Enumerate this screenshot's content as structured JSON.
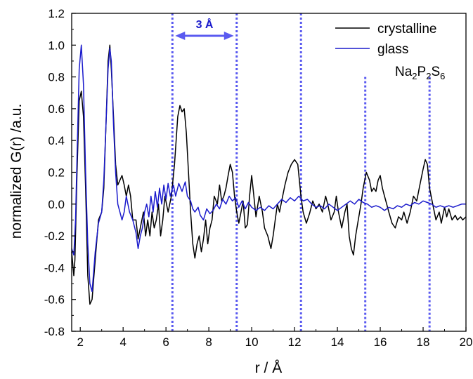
{
  "chart_data": {
    "type": "line",
    "xlabel": "r / Å",
    "ylabel": "normalized G(r) /a.u.",
    "xlim": [
      1.6,
      20
    ],
    "ylim": [
      -0.8,
      1.2
    ],
    "x_ticks": [
      2,
      4,
      6,
      8,
      10,
      12,
      14,
      16,
      18,
      20
    ],
    "y_ticks": [
      -0.8,
      -0.6,
      -0.4,
      -0.2,
      0.0,
      0.2,
      0.4,
      0.6,
      0.8,
      1.0,
      1.2
    ],
    "grid": false,
    "legend_position": "top-right",
    "colors": {
      "crystalline": "#000000",
      "glass": "#1a1acc",
      "annotation": "#5a5af0"
    },
    "annotations": {
      "bracket_label": "3 Å",
      "compound": {
        "base": "Na",
        "sub1": "2",
        "mid": "P",
        "sub2": "2",
        "end": "S",
        "sub3": "6"
      },
      "vertical_lines_x": [
        6.3,
        9.3,
        12.3,
        15.3,
        18.3
      ]
    },
    "series": [
      {
        "name": "crystalline",
        "points": [
          [
            1.6,
            -0.3
          ],
          [
            1.7,
            -0.45
          ],
          [
            1.75,
            -0.35
          ],
          [
            1.85,
            0.2
          ],
          [
            1.95,
            0.65
          ],
          [
            2.05,
            0.71
          ],
          [
            2.15,
            0.55
          ],
          [
            2.25,
            0.1
          ],
          [
            2.35,
            -0.45
          ],
          [
            2.45,
            -0.63
          ],
          [
            2.55,
            -0.6
          ],
          [
            2.7,
            -0.35
          ],
          [
            2.85,
            -0.1
          ],
          [
            3.0,
            -0.05
          ],
          [
            3.1,
            0.1
          ],
          [
            3.2,
            0.5
          ],
          [
            3.3,
            0.9
          ],
          [
            3.38,
            1.0
          ],
          [
            3.45,
            0.85
          ],
          [
            3.55,
            0.55
          ],
          [
            3.65,
            0.25
          ],
          [
            3.75,
            0.12
          ],
          [
            3.85,
            0.15
          ],
          [
            3.95,
            0.18
          ],
          [
            4.05,
            0.12
          ],
          [
            4.15,
            0.05
          ],
          [
            4.25,
            0.12
          ],
          [
            4.35,
            0.05
          ],
          [
            4.45,
            -0.1
          ],
          [
            4.6,
            -0.1
          ],
          [
            4.7,
            -0.22
          ],
          [
            4.8,
            -0.15
          ],
          [
            4.95,
            -0.05
          ],
          [
            5.05,
            -0.2
          ],
          [
            5.15,
            -0.1
          ],
          [
            5.25,
            -0.2
          ],
          [
            5.35,
            -0.05
          ],
          [
            5.45,
            -0.15
          ],
          [
            5.55,
            -0.1
          ],
          [
            5.65,
            0.0
          ],
          [
            5.75,
            -0.2
          ],
          [
            5.85,
            -0.1
          ],
          [
            5.95,
            0.05
          ],
          [
            6.1,
            -0.05
          ],
          [
            6.25,
            0.05
          ],
          [
            6.4,
            0.25
          ],
          [
            6.55,
            0.55
          ],
          [
            6.65,
            0.62
          ],
          [
            6.75,
            0.58
          ],
          [
            6.85,
            0.6
          ],
          [
            6.95,
            0.45
          ],
          [
            7.05,
            0.2
          ],
          [
            7.15,
            -0.05
          ],
          [
            7.25,
            -0.25
          ],
          [
            7.35,
            -0.34
          ],
          [
            7.45,
            -0.25
          ],
          [
            7.55,
            -0.2
          ],
          [
            7.65,
            -0.3
          ],
          [
            7.75,
            -0.22
          ],
          [
            7.85,
            -0.1
          ],
          [
            7.95,
            -0.25
          ],
          [
            8.05,
            -0.15
          ],
          [
            8.15,
            -0.1
          ],
          [
            8.25,
            0.05
          ],
          [
            8.4,
            0.0
          ],
          [
            8.5,
            0.12
          ],
          [
            8.6,
            0.02
          ],
          [
            8.7,
            0.05
          ],
          [
            8.8,
            0.1
          ],
          [
            8.9,
            0.18
          ],
          [
            9.0,
            0.25
          ],
          [
            9.1,
            0.2
          ],
          [
            9.2,
            0.05
          ],
          [
            9.3,
            -0.05
          ],
          [
            9.4,
            -0.12
          ],
          [
            9.5,
            -0.05
          ],
          [
            9.6,
            0.02
          ],
          [
            9.7,
            -0.15
          ],
          [
            9.8,
            -0.13
          ],
          [
            9.9,
            0.05
          ],
          [
            10.0,
            0.18
          ],
          [
            10.1,
            0.05
          ],
          [
            10.2,
            -0.08
          ],
          [
            10.35,
            0.05
          ],
          [
            10.5,
            -0.05
          ],
          [
            10.6,
            -0.15
          ],
          [
            10.75,
            -0.2
          ],
          [
            10.9,
            -0.28
          ],
          [
            11.0,
            -0.2
          ],
          [
            11.1,
            -0.1
          ],
          [
            11.2,
            0.0
          ],
          [
            11.3,
            -0.05
          ],
          [
            11.4,
            0.02
          ],
          [
            11.55,
            0.12
          ],
          [
            11.7,
            0.2
          ],
          [
            11.85,
            0.25
          ],
          [
            12.0,
            0.28
          ],
          [
            12.15,
            0.25
          ],
          [
            12.3,
            0.05
          ],
          [
            12.4,
            -0.05
          ],
          [
            12.55,
            -0.12
          ],
          [
            12.7,
            -0.06
          ],
          [
            12.85,
            0.02
          ],
          [
            13.0,
            -0.03
          ],
          [
            13.15,
            0.0
          ],
          [
            13.3,
            -0.05
          ],
          [
            13.45,
            0.05
          ],
          [
            13.55,
            0.0
          ],
          [
            13.7,
            -0.1
          ],
          [
            13.85,
            -0.05
          ],
          [
            13.95,
            0.05
          ],
          [
            14.05,
            -0.05
          ],
          [
            14.2,
            -0.15
          ],
          [
            14.35,
            -0.05
          ],
          [
            14.45,
            0.0
          ],
          [
            14.55,
            -0.2
          ],
          [
            14.65,
            -0.28
          ],
          [
            14.75,
            -0.32
          ],
          [
            14.85,
            -0.2
          ],
          [
            14.95,
            -0.12
          ],
          [
            15.1,
            0.0
          ],
          [
            15.2,
            0.1
          ],
          [
            15.35,
            0.2
          ],
          [
            15.5,
            0.15
          ],
          [
            15.6,
            0.08
          ],
          [
            15.7,
            0.1
          ],
          [
            15.8,
            0.08
          ],
          [
            15.9,
            0.15
          ],
          [
            16.0,
            0.18
          ],
          [
            16.1,
            0.1
          ],
          [
            16.2,
            0.05
          ],
          [
            16.3,
            0.0
          ],
          [
            16.4,
            -0.05
          ],
          [
            16.55,
            -0.12
          ],
          [
            16.7,
            -0.15
          ],
          [
            16.85,
            -0.08
          ],
          [
            17.0,
            -0.1
          ],
          [
            17.1,
            -0.05
          ],
          [
            17.25,
            -0.12
          ],
          [
            17.4,
            -0.05
          ],
          [
            17.55,
            0.05
          ],
          [
            17.7,
            0.02
          ],
          [
            17.85,
            0.12
          ],
          [
            18.0,
            0.22
          ],
          [
            18.1,
            0.28
          ],
          [
            18.2,
            0.25
          ],
          [
            18.3,
            0.1
          ],
          [
            18.45,
            0.0
          ],
          [
            18.6,
            -0.1
          ],
          [
            18.75,
            -0.05
          ],
          [
            18.85,
            -0.12
          ],
          [
            19.0,
            -0.02
          ],
          [
            19.1,
            -0.08
          ],
          [
            19.2,
            -0.03
          ],
          [
            19.35,
            -0.1
          ],
          [
            19.5,
            -0.07
          ],
          [
            19.6,
            -0.1
          ],
          [
            19.75,
            -0.08
          ],
          [
            19.85,
            -0.1
          ],
          [
            20.0,
            -0.08
          ]
        ]
      },
      {
        "name": "glass",
        "points": [
          [
            1.6,
            -0.28
          ],
          [
            1.7,
            -0.32
          ],
          [
            1.78,
            -0.1
          ],
          [
            1.85,
            0.3
          ],
          [
            1.95,
            0.85
          ],
          [
            2.05,
            1.0
          ],
          [
            2.15,
            0.75
          ],
          [
            2.25,
            0.2
          ],
          [
            2.35,
            -0.25
          ],
          [
            2.45,
            -0.5
          ],
          [
            2.55,
            -0.55
          ],
          [
            2.7,
            -0.3
          ],
          [
            2.85,
            -0.12
          ],
          [
            3.0,
            -0.05
          ],
          [
            3.1,
            0.15
          ],
          [
            3.2,
            0.5
          ],
          [
            3.3,
            0.85
          ],
          [
            3.38,
            0.98
          ],
          [
            3.45,
            0.9
          ],
          [
            3.55,
            0.5
          ],
          [
            3.65,
            0.2
          ],
          [
            3.75,
            0.0
          ],
          [
            3.85,
            -0.05
          ],
          [
            3.95,
            -0.1
          ],
          [
            4.05,
            -0.05
          ],
          [
            4.15,
            0.05
          ],
          [
            4.3,
            -0.05
          ],
          [
            4.45,
            -0.1
          ],
          [
            4.6,
            -0.18
          ],
          [
            4.7,
            -0.28
          ],
          [
            4.8,
            -0.2
          ],
          [
            4.9,
            -0.15
          ],
          [
            5.0,
            -0.05
          ],
          [
            5.1,
            0.0
          ],
          [
            5.2,
            -0.08
          ],
          [
            5.3,
            0.05
          ],
          [
            5.4,
            -0.05
          ],
          [
            5.5,
            0.08
          ],
          [
            5.6,
            -0.02
          ],
          [
            5.7,
            0.1
          ],
          [
            5.8,
            0.0
          ],
          [
            5.9,
            0.12
          ],
          [
            6.0,
            0.03
          ],
          [
            6.1,
            0.13
          ],
          [
            6.2,
            0.05
          ],
          [
            6.35,
            0.12
          ],
          [
            6.45,
            0.05
          ],
          [
            6.6,
            0.13
          ],
          [
            6.75,
            0.08
          ],
          [
            6.9,
            0.14
          ],
          [
            7.0,
            0.05
          ],
          [
            7.15,
            0.02
          ],
          [
            7.25,
            -0.03
          ],
          [
            7.35,
            -0.05
          ],
          [
            7.5,
            -0.02
          ],
          [
            7.6,
            -0.07
          ],
          [
            7.75,
            -0.1
          ],
          [
            7.9,
            -0.03
          ],
          [
            8.05,
            -0.06
          ],
          [
            8.2,
            -0.04
          ],
          [
            8.35,
            0.0
          ],
          [
            8.5,
            -0.03
          ],
          [
            8.65,
            0.03
          ],
          [
            8.8,
            0.0
          ],
          [
            8.95,
            0.05
          ],
          [
            9.1,
            0.02
          ],
          [
            9.25,
            0.04
          ],
          [
            9.4,
            -0.02
          ],
          [
            9.55,
            0.02
          ],
          [
            9.7,
            -0.03
          ],
          [
            9.85,
            0.01
          ],
          [
            10.0,
            -0.02
          ],
          [
            10.2,
            -0.04
          ],
          [
            10.4,
            -0.02
          ],
          [
            10.6,
            -0.04
          ],
          [
            10.8,
            -0.01
          ],
          [
            11.0,
            -0.03
          ],
          [
            11.2,
            0.0
          ],
          [
            11.4,
            0.03
          ],
          [
            11.6,
            0.01
          ],
          [
            11.8,
            0.04
          ],
          [
            12.0,
            0.02
          ],
          [
            12.2,
            0.05
          ],
          [
            12.4,
            0.02
          ],
          [
            12.6,
            0.03
          ],
          [
            12.8,
            0.0
          ],
          [
            13.0,
            -0.02
          ],
          [
            13.2,
            -0.01
          ],
          [
            13.4,
            -0.03
          ],
          [
            13.6,
            0.0
          ],
          [
            13.8,
            -0.02
          ],
          [
            14.0,
            -0.04
          ],
          [
            14.2,
            -0.02
          ],
          [
            14.4,
            0.0
          ],
          [
            14.6,
            0.02
          ],
          [
            14.8,
            0.0
          ],
          [
            15.0,
            0.03
          ],
          [
            15.2,
            0.01
          ],
          [
            15.4,
            0.0
          ],
          [
            15.6,
            -0.02
          ],
          [
            15.8,
            -0.01
          ],
          [
            16.0,
            -0.02
          ],
          [
            16.2,
            -0.04
          ],
          [
            16.4,
            -0.02
          ],
          [
            16.6,
            -0.03
          ],
          [
            16.8,
            -0.01
          ],
          [
            17.0,
            -0.02
          ],
          [
            17.2,
            0.0
          ],
          [
            17.4,
            -0.01
          ],
          [
            17.6,
            0.01
          ],
          [
            17.8,
            0.0
          ],
          [
            18.0,
            0.02
          ],
          [
            18.2,
            0.01
          ],
          [
            18.4,
            0.0
          ],
          [
            18.6,
            -0.02
          ],
          [
            18.8,
            -0.01
          ],
          [
            19.0,
            -0.02
          ],
          [
            19.2,
            -0.01
          ],
          [
            19.4,
            -0.02
          ],
          [
            19.6,
            -0.01
          ],
          [
            19.8,
            0.0
          ],
          [
            20.0,
            0.0
          ]
        ]
      }
    ]
  }
}
